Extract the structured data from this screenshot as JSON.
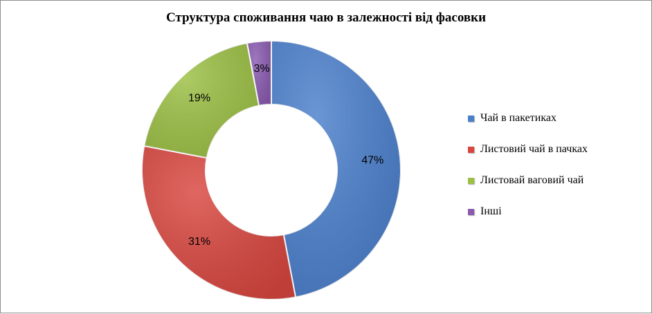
{
  "chart_data": {
    "type": "pie",
    "variant": "donut",
    "title": "Структура споживання чаю в залежності від фасовки",
    "categories": [
      "Чай в пакетиках",
      "Листовий чай в пачках",
      "Листовай ваговий чай",
      "Інші"
    ],
    "values": [
      47,
      31,
      19,
      3
    ],
    "labels": [
      "47%",
      "31%",
      "19%",
      "3%"
    ],
    "colors": [
      "#4a7fcc",
      "#d9463f",
      "#9cc044",
      "#8a5ab0"
    ],
    "legend_position": "right"
  }
}
